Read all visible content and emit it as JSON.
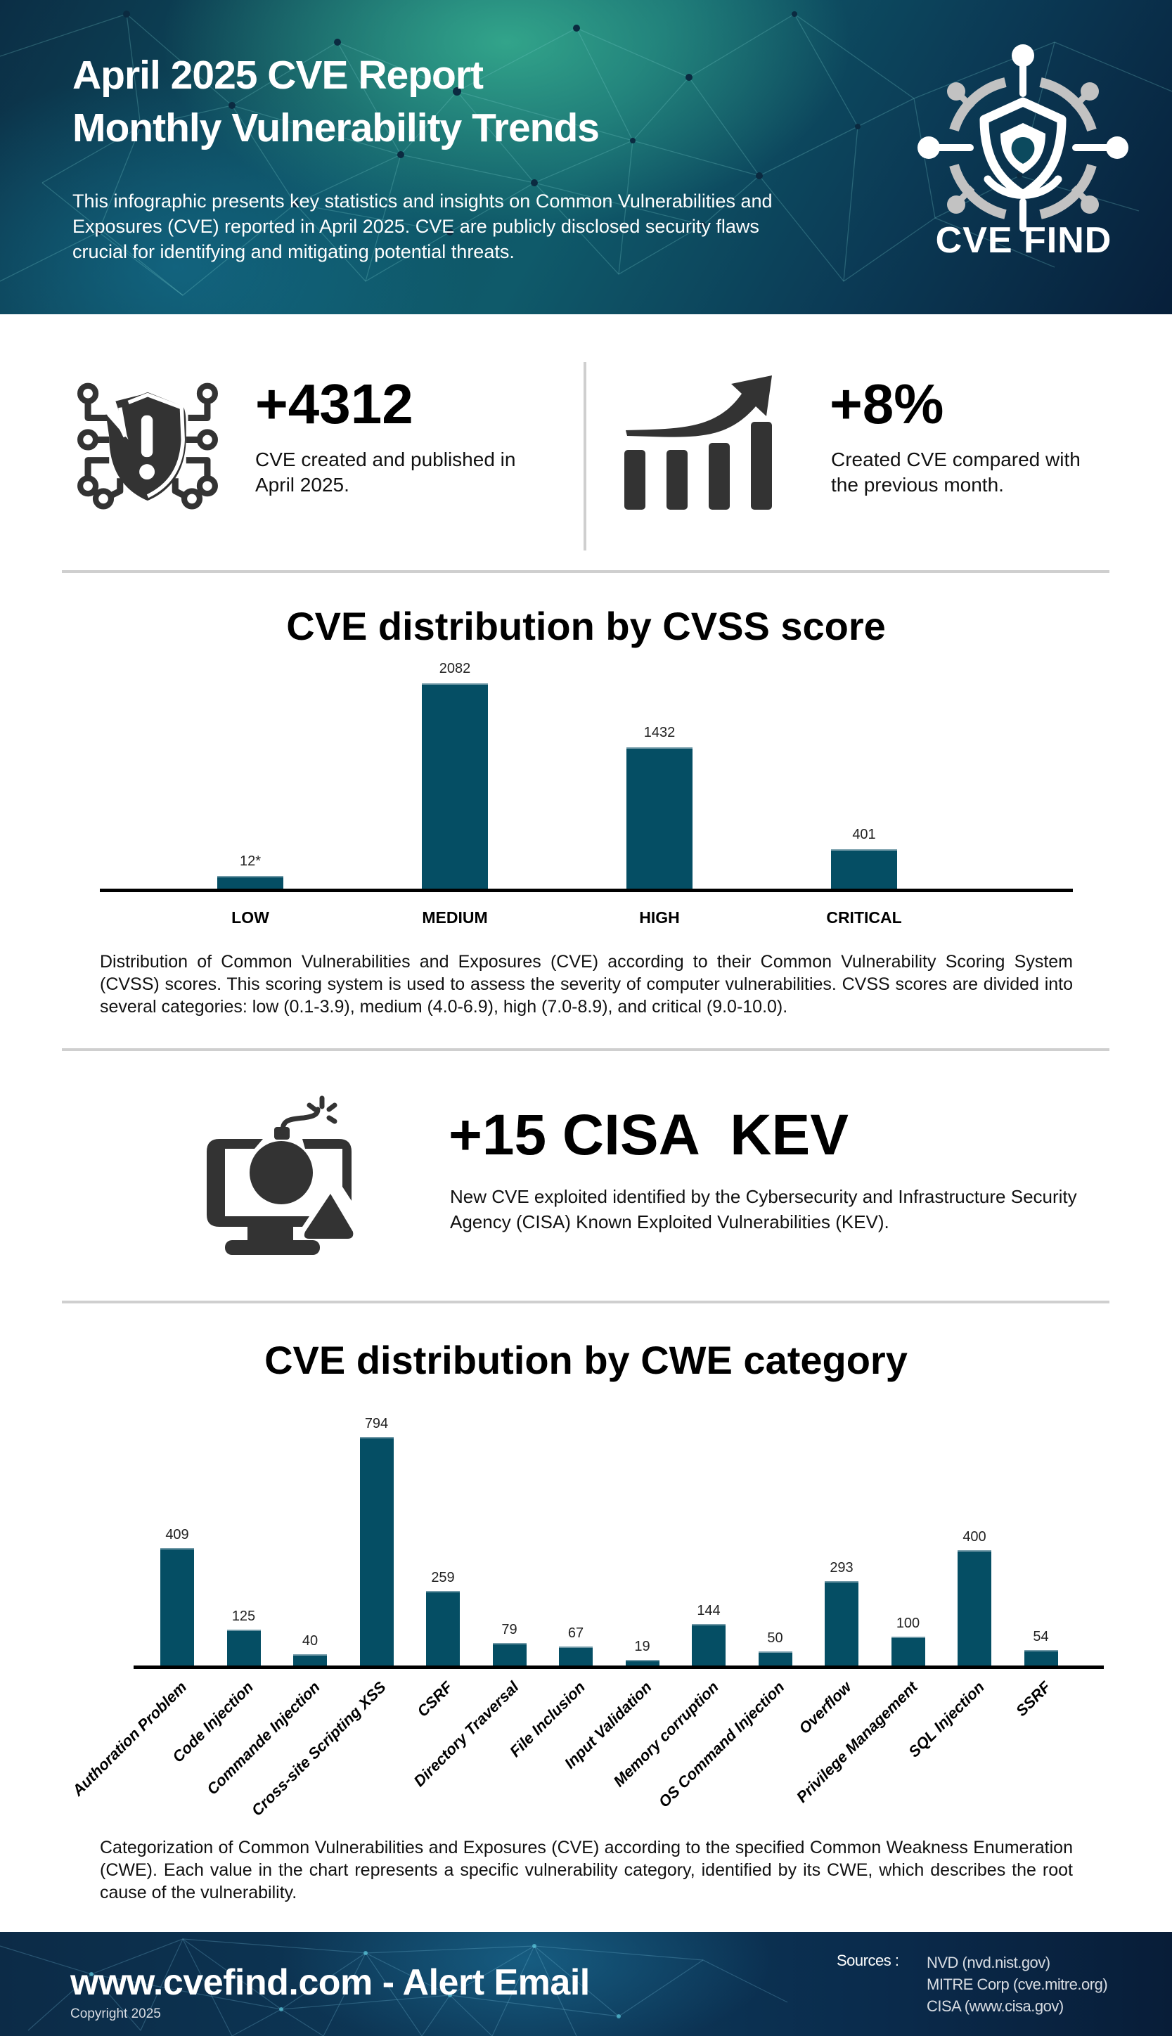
{
  "header": {
    "title_line1": "April 2025 CVE Report",
    "title_line2": "Monthly Vulnerability Trends",
    "intro": "This infographic presents key statistics and insights on Common Vulnerabilities and Exposures (CVE) reported in April 2025. CVE are publicly disclosed security flaws crucial for identifying and mitigating potential threats.",
    "logo_text": "CVE FIND",
    "logo_icon": "shield-target-network-icon"
  },
  "stats": [
    {
      "icon": "shield-alert-circuit-icon",
      "value": "+4312",
      "description": "CVE created and published in April 2025."
    },
    {
      "icon": "growth-chart-arrow-icon",
      "value": "+8%",
      "description": "Created CVE compared with the previous month."
    }
  ],
  "kev": {
    "icon": "computer-bomb-warning-icon",
    "value": "+15 CISA  KEV",
    "description": "New CVE exploited identified by the Cybersecurity and Infrastructure Security Agency (CISA) Known Exploited Vulnerabilities (KEV)."
  },
  "colors": {
    "bar": "#054e64",
    "icon": "#333333",
    "header_bg": "#0e5566",
    "footer_bg": "#0c2b47",
    "divider": "#cfcfcf"
  },
  "chart_data": [
    {
      "type": "bar",
      "title": "CVE distribution by CVSS score",
      "categories": [
        "LOW",
        "MEDIUM",
        "HIGH",
        "CRITICAL"
      ],
      "values": [
        12,
        2082,
        1432,
        401
      ],
      "value_labels": [
        "12*",
        "2082",
        "1432",
        "401"
      ],
      "xlabel": "",
      "ylabel": "",
      "grid": false,
      "legend": "none",
      "description": "Distribution of Common Vulnerabilities and Exposures (CVE) according to their Common Vulnerability Scoring System (CVSS) scores. This scoring system is used to assess the severity of computer vulnerabilities. CVSS scores are divided into several categories: low (0.1-3.9), medium (4.0-6.9), high (7.0-8.9), and critical (9.0-10.0)."
    },
    {
      "type": "bar",
      "title": "CVE distribution by CWE category",
      "categories": [
        "Authoration Problem",
        "Code Injection",
        "Commande Injection",
        "Cross-site Scripting XSS",
        "CSRF",
        "Directory Traversal",
        "File Inclusion",
        "Input Validation",
        "Memory corruption",
        "OS Command Injection",
        "Overflow",
        "Privilege Management",
        "SQL Injection",
        "SSRF"
      ],
      "values": [
        409,
        125,
        40,
        794,
        259,
        79,
        67,
        19,
        144,
        50,
        293,
        100,
        400,
        54
      ],
      "value_labels": [
        "409",
        "125",
        "40",
        "794",
        "259",
        "79",
        "67",
        "19",
        "144",
        "50",
        "293",
        "100",
        "400",
        "54"
      ],
      "xlabel": "",
      "ylabel": "",
      "grid": false,
      "legend": "none",
      "tick_label_rotation": -45,
      "description": "Categorization of Common Vulnerabilities and Exposures (CVE) according to the specified Common Weakness Enumeration (CWE). Each value in the chart represents a specific vulnerability category, identified by its CWE, which describes the root cause of the vulnerability."
    }
  ],
  "footer": {
    "url": "www.cvefind.com - Alert Email",
    "copyright": "Copyright 2025",
    "sources_label": "Sources :",
    "sources": [
      "NVD (nvd.nist.gov)",
      "MITRE Corp (cve.mitre.org)",
      "CISA (www.cisa.gov)"
    ]
  }
}
